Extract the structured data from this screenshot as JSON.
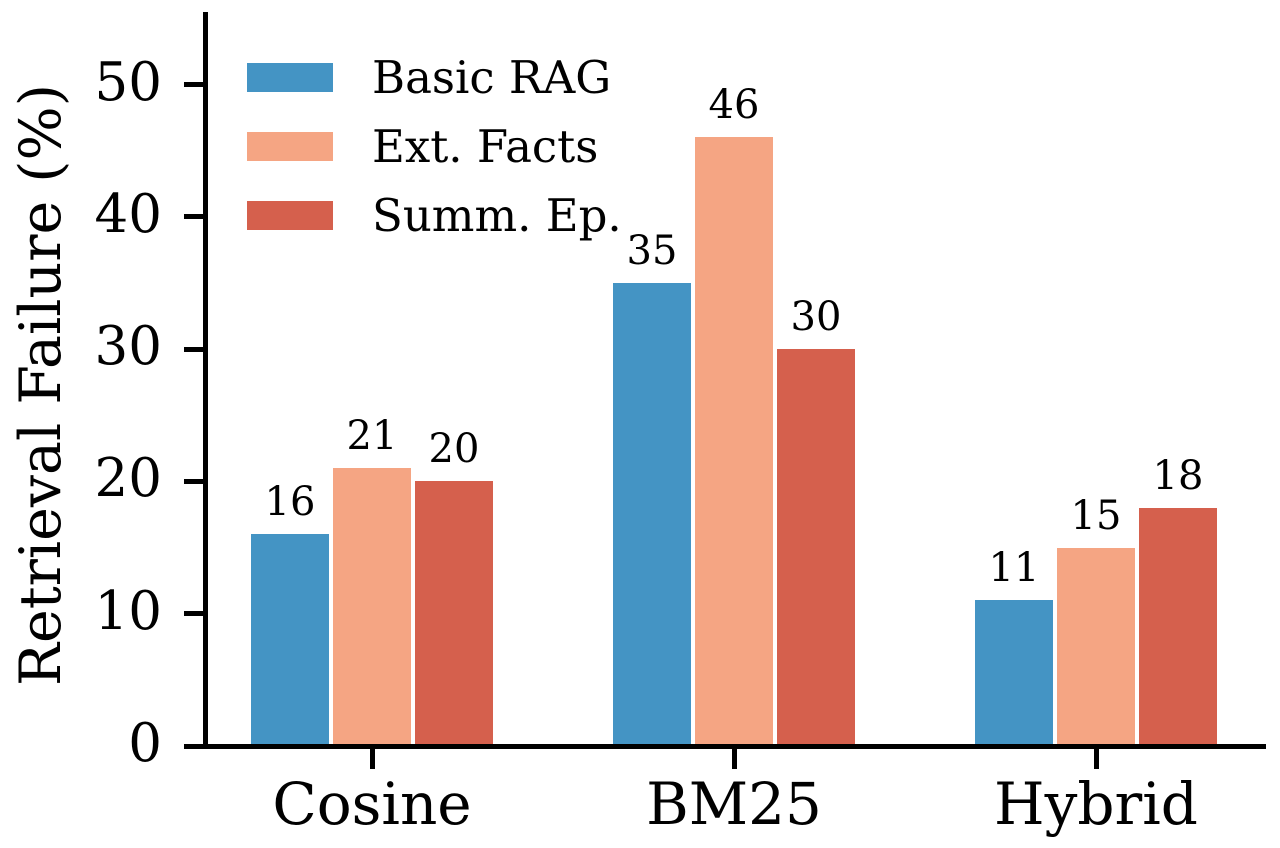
{
  "figure": {
    "background_color": "#ffffff",
    "text_color": "#000000",
    "axis_color": "#000000"
  },
  "chart_data": {
    "type": "bar",
    "title": "",
    "xlabel": "",
    "ylabel": "Retrieval Failure (%)",
    "categories": [
      "Cosine",
      "BM25",
      "Hybrid"
    ],
    "series": [
      {
        "name": "Basic RAG",
        "color": "#4494c4",
        "values": [
          16,
          35,
          11
        ]
      },
      {
        "name": "Ext. Facts",
        "color": "#f5a583",
        "values": [
          21,
          46,
          15
        ]
      },
      {
        "name": "Summ. Ep.",
        "color": "#d5604d",
        "values": [
          20,
          30,
          18
        ]
      }
    ],
    "bar_value_labels": [
      [
        "16",
        "35",
        "11"
      ],
      [
        "21",
        "46",
        "15"
      ],
      [
        "20",
        "30",
        "18"
      ]
    ],
    "yticks": [
      "0",
      "10",
      "20",
      "30",
      "40",
      "50"
    ],
    "ylim": [
      0,
      55
    ],
    "grid": false,
    "legend_position": "upper-left",
    "legend_frame": false
  }
}
